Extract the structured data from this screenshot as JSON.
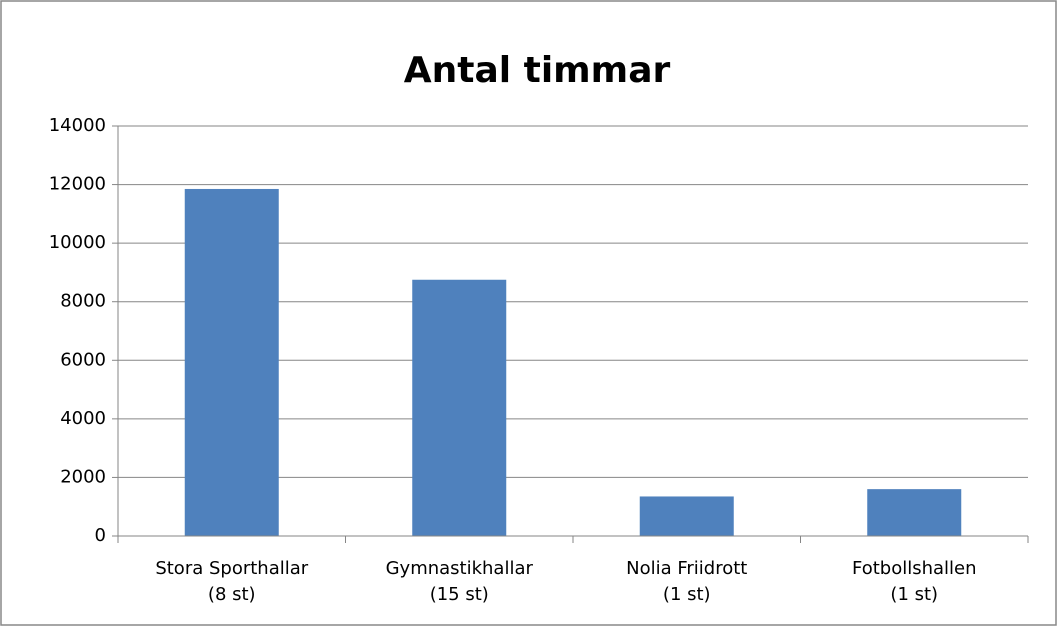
{
  "chart_data": {
    "type": "bar",
    "title": "Antal timmar",
    "categories": [
      "Stora Sporthallar\n(8 st)",
      "Gymnastikhallar\n(15 st)",
      "Nolia Friidrott\n(1 st)",
      "Fotbollshallen\n(1 st)"
    ],
    "values": [
      11850,
      8750,
      1350,
      1600
    ],
    "color": "#4f81bd",
    "ylim": [
      0,
      14000
    ],
    "yticks": [
      0,
      2000,
      4000,
      6000,
      8000,
      10000,
      12000,
      14000
    ],
    "grid": true
  }
}
